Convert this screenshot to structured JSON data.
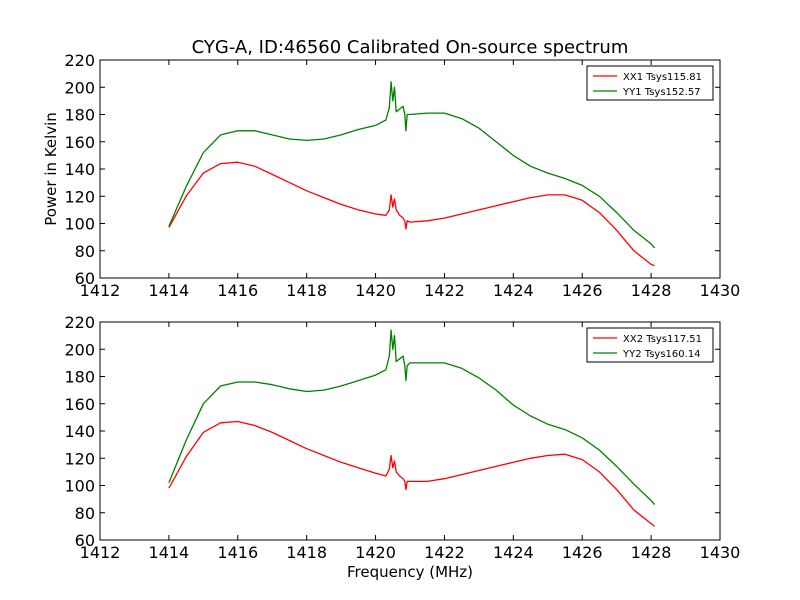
{
  "chart_data": [
    {
      "type": "line",
      "title": "CYG-A, ID:46560 Calibrated On-source spectrum",
      "xlabel": "",
      "ylabel": "Power in Kelvin",
      "xlim": [
        1412,
        1430
      ],
      "ylim": [
        60,
        220
      ],
      "xticks": [
        1412,
        1414,
        1416,
        1418,
        1420,
        1422,
        1424,
        1426,
        1428,
        1430
      ],
      "yticks": [
        60,
        80,
        100,
        120,
        140,
        160,
        180,
        200,
        220
      ],
      "grid": false,
      "legend_position": "top-right",
      "series": [
        {
          "name": "XX1 Tsys115.81",
          "color": "#ff0000",
          "x": [
            1414.0,
            1414.5,
            1415.0,
            1415.5,
            1416.0,
            1416.5,
            1417.0,
            1417.5,
            1418.0,
            1418.5,
            1419.0,
            1419.5,
            1420.0,
            1420.3,
            1420.4,
            1420.45,
            1420.5,
            1420.55,
            1420.6,
            1420.7,
            1420.8,
            1420.85,
            1420.88,
            1420.92,
            1421.0,
            1421.5,
            1422.0,
            1422.5,
            1423.0,
            1423.5,
            1424.0,
            1424.5,
            1425.0,
            1425.5,
            1426.0,
            1426.5,
            1427.0,
            1427.5,
            1428.0,
            1428.1
          ],
          "values": [
            97,
            120,
            137,
            144,
            145,
            142,
            136,
            130,
            124,
            119,
            114,
            110,
            107,
            106,
            110,
            121,
            112,
            118,
            110,
            106,
            104,
            102,
            96,
            102,
            101,
            102,
            104,
            107,
            110,
            113,
            116,
            119,
            121,
            121,
            117,
            108,
            95,
            80,
            70,
            69
          ]
        },
        {
          "name": "YY1 Tsys152.57",
          "color": "#008000",
          "x": [
            1414.0,
            1414.5,
            1415.0,
            1415.5,
            1416.0,
            1416.5,
            1417.0,
            1417.5,
            1418.0,
            1418.5,
            1419.0,
            1419.5,
            1420.0,
            1420.3,
            1420.4,
            1420.45,
            1420.5,
            1420.55,
            1420.6,
            1420.7,
            1420.8,
            1420.85,
            1420.88,
            1420.92,
            1421.0,
            1421.5,
            1422.0,
            1422.5,
            1423.0,
            1423.5,
            1424.0,
            1424.5,
            1425.0,
            1425.5,
            1426.0,
            1426.5,
            1427.0,
            1427.5,
            1428.0,
            1428.1
          ],
          "values": [
            98,
            127,
            152,
            165,
            168,
            168,
            165,
            162,
            161,
            162,
            165,
            169,
            172,
            176,
            185,
            204,
            190,
            200,
            182,
            184,
            186,
            180,
            168,
            180,
            180,
            181,
            181,
            177,
            170,
            160,
            150,
            142,
            137,
            133,
            128,
            120,
            108,
            95,
            85,
            82
          ]
        }
      ]
    },
    {
      "type": "line",
      "title": "",
      "xlabel": "Frequency (MHz)",
      "ylabel": "",
      "xlim": [
        1412,
        1430
      ],
      "ylim": [
        60,
        220
      ],
      "xticks": [
        1412,
        1414,
        1416,
        1418,
        1420,
        1422,
        1424,
        1426,
        1428,
        1430
      ],
      "yticks": [
        60,
        80,
        100,
        120,
        140,
        160,
        180,
        200,
        220
      ],
      "grid": false,
      "legend_position": "top-right",
      "series": [
        {
          "name": "XX2 Tsys117.51",
          "color": "#ff0000",
          "x": [
            1414.0,
            1414.5,
            1415.0,
            1415.5,
            1416.0,
            1416.5,
            1417.0,
            1417.5,
            1418.0,
            1418.5,
            1419.0,
            1419.5,
            1420.0,
            1420.3,
            1420.4,
            1420.45,
            1420.5,
            1420.55,
            1420.6,
            1420.7,
            1420.8,
            1420.85,
            1420.88,
            1420.92,
            1421.0,
            1421.5,
            1422.0,
            1422.5,
            1423.0,
            1423.5,
            1424.0,
            1424.5,
            1425.0,
            1425.5,
            1426.0,
            1426.5,
            1427.0,
            1427.5,
            1428.0,
            1428.1
          ],
          "values": [
            98,
            121,
            139,
            146,
            147,
            144,
            139,
            133,
            127,
            122,
            117,
            113,
            109,
            107,
            112,
            122,
            113,
            118,
            110,
            107,
            105,
            103,
            97,
            103,
            103,
            103,
            105,
            108,
            111,
            114,
            117,
            120,
            122,
            123,
            119,
            110,
            97,
            82,
            72,
            70
          ]
        },
        {
          "name": "YY2 Tsys160.14",
          "color": "#008000",
          "x": [
            1414.0,
            1414.5,
            1415.0,
            1415.5,
            1416.0,
            1416.5,
            1417.0,
            1417.5,
            1418.0,
            1418.5,
            1419.0,
            1419.5,
            1420.0,
            1420.3,
            1420.4,
            1420.45,
            1420.5,
            1420.55,
            1420.6,
            1420.7,
            1420.8,
            1420.85,
            1420.88,
            1420.92,
            1421.0,
            1421.5,
            1422.0,
            1422.5,
            1423.0,
            1423.5,
            1424.0,
            1424.5,
            1425.0,
            1425.5,
            1426.0,
            1426.5,
            1427.0,
            1427.5,
            1428.0,
            1428.1
          ],
          "values": [
            102,
            133,
            160,
            173,
            176,
            176,
            174,
            171,
            169,
            170,
            173,
            177,
            181,
            185,
            195,
            214,
            200,
            210,
            191,
            193,
            195,
            188,
            177,
            188,
            190,
            190,
            190,
            186,
            179,
            170,
            159,
            151,
            145,
            141,
            135,
            126,
            114,
            101,
            89,
            86
          ]
        }
      ]
    }
  ]
}
